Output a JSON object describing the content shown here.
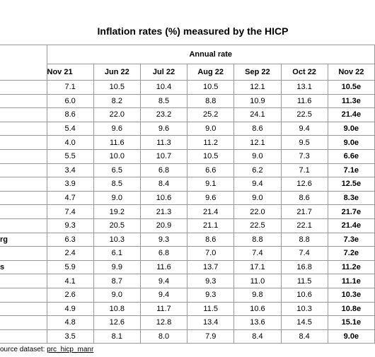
{
  "title": "Inflation rates (%) measured by the HICP",
  "table": {
    "group_header": "Annual rate",
    "columns": [
      "Nov 21",
      "Jun 22",
      "Jul 22",
      "Aug 22",
      "Sep 22",
      "Oct 22",
      "Nov 22"
    ],
    "rows": [
      {
        "cells": [
          "7.1",
          "10.5",
          "10.4",
          "10.5",
          "12.1",
          "13.1",
          "10.5e"
        ]
      },
      {
        "cells": [
          "6.0",
          "8.2",
          "8.5",
          "8.8",
          "10.9",
          "11.6",
          "11.3e"
        ]
      },
      {
        "cells": [
          "8.6",
          "22.0",
          "23.2",
          "25.2",
          "24.1",
          "22.5",
          "21.4e"
        ]
      },
      {
        "cells": [
          "5.4",
          "9.6",
          "9.6",
          "9.0",
          "8.6",
          "9.4",
          "9.0e"
        ]
      },
      {
        "cells": [
          "4.0",
          "11.6",
          "11.3",
          "11.2",
          "12.1",
          "9.5",
          "9.0e"
        ]
      },
      {
        "cells": [
          "5.5",
          "10.0",
          "10.7",
          "10.5",
          "9.0",
          "7.3",
          "6.6e"
        ]
      },
      {
        "cells": [
          "3.4",
          "6.5",
          "6.8",
          "6.6",
          "6.2",
          "7.1",
          "7.1e"
        ]
      },
      {
        "cells": [
          "3.9",
          "8.5",
          "8.4",
          "9.1",
          "9.4",
          "12.6",
          "12.5e"
        ]
      },
      {
        "cells": [
          "4.7",
          "9.0",
          "10.6",
          "9.6",
          "9.0",
          "8.6",
          "8.3e"
        ]
      },
      {
        "cells": [
          "7.4",
          "19.2",
          "21.3",
          "21.4",
          "22.0",
          "21.7",
          "21.7e"
        ]
      },
      {
        "cells": [
          "9.3",
          "20.5",
          "20.9",
          "21.1",
          "22.5",
          "22.1",
          "21.4e"
        ]
      },
      {
        "label": "rg",
        "cells": [
          "6.3",
          "10.3",
          "9.3",
          "8.6",
          "8.8",
          "8.8",
          "7.3e"
        ]
      },
      {
        "cells": [
          "2.4",
          "6.1",
          "6.8",
          "7.0",
          "7.4",
          "7.4",
          "7.2e"
        ]
      },
      {
        "label": "s",
        "cells": [
          "5.9",
          "9.9",
          "11.6",
          "13.7",
          "17.1",
          "16.8",
          "11.2e"
        ]
      },
      {
        "cells": [
          "4.1",
          "8.7",
          "9.4",
          "9.3",
          "11.0",
          "11.5",
          "11.1e"
        ]
      },
      {
        "cells": [
          "2.6",
          "9.0",
          "9.4",
          "9.3",
          "9.8",
          "10.6",
          "10.3e"
        ]
      },
      {
        "cells": [
          "4.9",
          "10.8",
          "11.7",
          "11.5",
          "10.6",
          "10.3",
          "10.8e"
        ]
      },
      {
        "cells": [
          "4.8",
          "12.6",
          "12.8",
          "13.4",
          "13.6",
          "14.5",
          "15.1e"
        ]
      },
      {
        "cells": [
          "3.5",
          "8.1",
          "8.0",
          "7.9",
          "8.4",
          "8.4",
          "9.0e"
        ]
      }
    ]
  },
  "footer": {
    "text": "ource dataset: ",
    "link": "prc_hicp_manr"
  }
}
